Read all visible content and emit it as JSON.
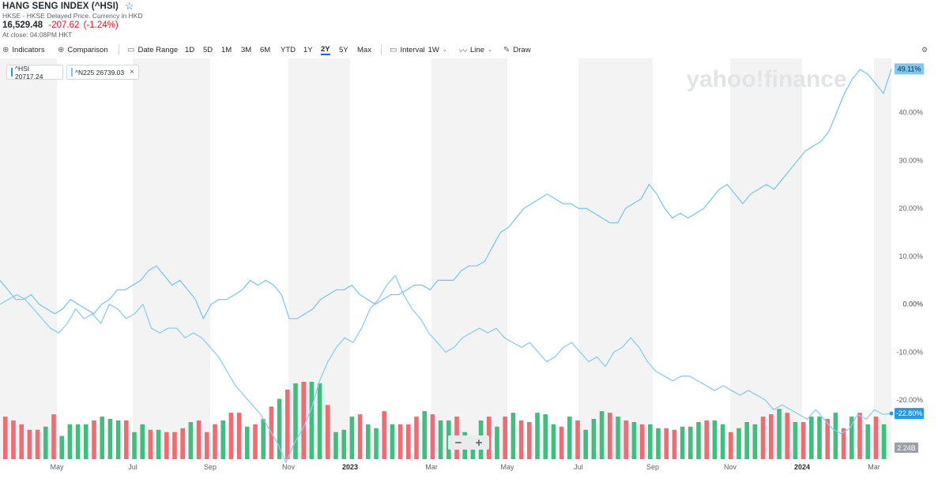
{
  "header": {
    "title": "HANG SENG INDEX (^HSI)",
    "subtitle": "HKSE - HKSE Delayed Price. Currency in HKD",
    "price": "16,529.48",
    "change": "-207.62",
    "change_pct": "(-1.24%)",
    "close_time": "At close: 04:08PM HKT"
  },
  "toolbar": {
    "indicators": "Indicators",
    "comparison": "Comparison",
    "date_range": "Date Range",
    "ranges": [
      "1D",
      "5D",
      "1M",
      "3M",
      "6M",
      "YTD",
      "1Y",
      "2Y",
      "5Y",
      "Max"
    ],
    "active_range": "2Y",
    "interval_label": "Interval",
    "interval_value": "1W",
    "chart_type": "Line",
    "draw": "Draw",
    "icons": [
      "plus-circle-icon",
      "plus-circle-icon",
      "calendar-icon",
      "interval-icon",
      "line-chart-icon",
      "pencil-icon",
      "chevron-down-icon"
    ]
  },
  "legend": {
    "hsi_label": "^HSI 20717.24",
    "n225_label": "^N225 26739.03"
  },
  "watermark": "yahoo!finance",
  "zoom": {
    "minus": "−",
    "plus": "+"
  },
  "colors": {
    "hsi": "#1e9bf0",
    "n225": "#7cc8f2",
    "series_line": "#8ecdf2",
    "vol_up": "#3fbf7f",
    "vol_down": "#f26a72",
    "band": "#f3f3f3",
    "volume_badge": "#9aa0a6"
  },
  "chart_data": {
    "type": "line",
    "x_tick_labels": [
      "May",
      "Jul",
      "Sep",
      "Nov",
      "2023",
      "Mar",
      "May",
      "Jul",
      "Sep",
      "Nov",
      "2024",
      "Mar"
    ],
    "y_tick_labels": [
      "40.00%",
      "30.00%",
      "20.00%",
      "10.00%",
      "0.00%",
      "-10.00%",
      "-20.00%"
    ],
    "ylim": [
      -32,
      50
    ],
    "series": [
      {
        "name": "^HSI",
        "final_label": "-22.80%",
        "values": [
          0,
          1,
          2,
          1,
          -1,
          -3,
          -5,
          -6,
          -4,
          -1,
          -3,
          -2,
          -4,
          0,
          -1,
          -3,
          -2,
          0,
          -5,
          -6,
          -5,
          -5,
          -7,
          -6,
          -7,
          -9,
          -11,
          -14,
          -17,
          -19,
          -21,
          -23,
          -26,
          -29,
          -33,
          -29,
          -26,
          -22,
          -16,
          -12,
          -9,
          -7,
          -8,
          -5,
          -1,
          1,
          4,
          6,
          2,
          -1,
          -3,
          -6,
          -8,
          -10,
          -9,
          -7,
          -6,
          -5,
          -6,
          -5,
          -7,
          -8,
          -9,
          -8,
          -10,
          -12,
          -11,
          -9,
          -8,
          -10,
          -12,
          -11,
          -13,
          -10,
          -9,
          -7,
          -9,
          -12,
          -14,
          -15,
          -16,
          -15,
          -15,
          -16,
          -17,
          -18,
          -17,
          -18,
          -19,
          -18,
          -19,
          -20,
          -22,
          -21,
          -22,
          -23,
          -24,
          -22,
          -24,
          -26,
          -27,
          -26,
          -23,
          -24,
          -22,
          -23,
          -22.8
        ]
      },
      {
        "name": "^N225",
        "final_label": "49.11%",
        "values": [
          5,
          3,
          1,
          1,
          2,
          0,
          -1,
          -2,
          -1,
          1,
          0,
          -1,
          -2,
          0,
          1,
          3,
          3,
          4,
          5,
          7,
          8,
          6,
          4,
          5,
          3,
          1,
          -3,
          0,
          1,
          1,
          2,
          3,
          5,
          4,
          5,
          4,
          2,
          -3,
          -3,
          -2,
          -1,
          1,
          2,
          3,
          3,
          4,
          2,
          1,
          0,
          1,
          2,
          2,
          3,
          4,
          4,
          3,
          5,
          5,
          5,
          7,
          8,
          8,
          9,
          12,
          15,
          16,
          18,
          20,
          21,
          22,
          23,
          22,
          21,
          21,
          20,
          20,
          19,
          18,
          17,
          17,
          20,
          21,
          22,
          25,
          23,
          20,
          18,
          19,
          18,
          19,
          20,
          22,
          24,
          25,
          23,
          21,
          23,
          24,
          25,
          24,
          26,
          28,
          30,
          32,
          33,
          34,
          36,
          40,
          44,
          47,
          49,
          48,
          46,
          44,
          49.11
        ]
      }
    ],
    "volume": {
      "label": "2.24B",
      "values": [
        0.55,
        0.5,
        0.45,
        0.38,
        0.38,
        0.42,
        0.58,
        0.3,
        0.45,
        0.45,
        0.45,
        0.5,
        0.55,
        0.52,
        0.5,
        0.5,
        0.35,
        0.45,
        0.38,
        0.38,
        0.35,
        0.35,
        0.4,
        0.48,
        0.5,
        0.35,
        0.45,
        0.5,
        0.6,
        0.6,
        0.42,
        0.45,
        0.52,
        0.68,
        0.78,
        0.9,
        0.98,
        1.0,
        1.0,
        0.98,
        0.7,
        0.35,
        0.38,
        0.55,
        0.58,
        0.45,
        0.4,
        0.62,
        0.45,
        0.45,
        0.45,
        0.55,
        0.62,
        0.58,
        0.5,
        0.5,
        0.55,
        0.35,
        0.3,
        0.5,
        0.55,
        0.42,
        0.55,
        0.6,
        0.5,
        0.48,
        0.6,
        0.58,
        0.45,
        0.42,
        0.55,
        0.5,
        0.38,
        0.52,
        0.62,
        0.6,
        0.55,
        0.5,
        0.48,
        0.45,
        0.45,
        0.4,
        0.4,
        0.38,
        0.42,
        0.42,
        0.48,
        0.5,
        0.5,
        0.45,
        0.35,
        0.4,
        0.48,
        0.45,
        0.55,
        0.58,
        0.65,
        0.6,
        0.48,
        0.48,
        0.55,
        0.55,
        0.52,
        0.6,
        0.4,
        0.55,
        0.6,
        0.45,
        0.55,
        0.45
      ],
      "direction": [
        -1,
        -1,
        -1,
        -1,
        -1,
        1,
        -1,
        1,
        1,
        1,
        1,
        -1,
        1,
        1,
        1,
        -1,
        1,
        1,
        -1,
        1,
        -1,
        -1,
        -1,
        1,
        -1,
        -1,
        -1,
        1,
        -1,
        -1,
        1,
        -1,
        1,
        -1,
        1,
        -1,
        1,
        -1,
        1,
        1,
        -1,
        1,
        1,
        1,
        -1,
        1,
        1,
        -1,
        1,
        -1,
        -1,
        -1,
        1,
        -1,
        1,
        1,
        -1,
        1,
        1,
        1,
        -1,
        1,
        -1,
        1,
        -1,
        -1,
        1,
        1,
        1,
        -1,
        1,
        -1,
        1,
        1,
        1,
        -1,
        1,
        -1,
        1,
        -1,
        1,
        1,
        -1,
        -1,
        1,
        1,
        1,
        -1,
        1,
        1,
        -1,
        1,
        1,
        1,
        -1,
        -1,
        1,
        -1,
        1,
        -1,
        1,
        1,
        -1,
        1,
        -1,
        1,
        -1,
        1,
        -1,
        1
      ]
    }
  }
}
